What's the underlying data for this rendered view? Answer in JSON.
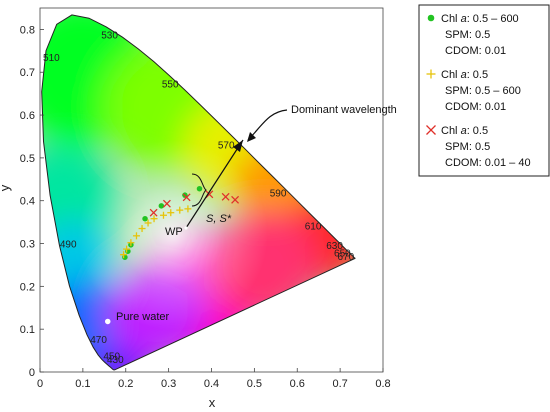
{
  "chart_data": {
    "type": "scatter",
    "xlabel": "x",
    "ylabel": "y",
    "xlim": [
      0,
      0.8
    ],
    "ylim": [
      0,
      0.85
    ],
    "x_ticks": [
      0,
      0.1,
      0.2,
      0.3,
      0.4,
      0.5,
      0.6,
      0.7,
      0.8
    ],
    "x_tick_labels": [
      "0",
      "0.1",
      "0.2",
      "0.3",
      "0.4",
      "0.5",
      "0.6",
      "0.7",
      "0.8"
    ],
    "y_ticks": [
      0,
      0.1,
      0.2,
      0.3,
      0.4,
      0.5,
      0.6,
      0.7,
      0.8
    ],
    "y_tick_labels": [
      "0",
      "0.1",
      "0.2",
      "0.3",
      "0.4",
      "0.5",
      "0.6",
      "0.7",
      "0.8"
    ],
    "grid": false,
    "legend_position": "outside-right",
    "locus_labels": [
      {
        "label": "470",
        "x": 0.124,
        "y": 0.058
      },
      {
        "label": "450",
        "x": 0.157,
        "y": 0.018
      },
      {
        "label": "430",
        "x": 0.166,
        "y": 0.009
      },
      {
        "label": "490",
        "x": 0.045,
        "y": 0.295
      },
      {
        "label": "510",
        "x": 0.014,
        "y": 0.75
      },
      {
        "label": "530",
        "x": 0.155,
        "y": 0.805
      },
      {
        "label": "550",
        "x": 0.302,
        "y": 0.692
      },
      {
        "label": "570",
        "x": 0.444,
        "y": 0.547
      },
      {
        "label": "590",
        "x": 0.575,
        "y": 0.424
      },
      {
        "label": "610",
        "x": 0.658,
        "y": 0.341
      },
      {
        "label": "630",
        "x": 0.708,
        "y": 0.292
      },
      {
        "label": "650",
        "x": 0.726,
        "y": 0.274
      },
      {
        "label": "670",
        "x": 0.734,
        "y": 0.265
      }
    ],
    "annotations": {
      "dominant_wavelength": "Dominant wavelength",
      "pure_water": "Pure water",
      "wp": "WP",
      "s_label": "S, S*"
    },
    "series": [
      {
        "name": "Chl a: 0.5 – 600 / SPM: 0.5 / CDOM: 0.01",
        "marker": "dot",
        "color": "#22c322",
        "x": [
          0.198,
          0.205,
          0.212,
          0.245,
          0.283,
          0.338,
          0.372
        ],
        "y": [
          0.268,
          0.282,
          0.297,
          0.358,
          0.388,
          0.413,
          0.428
        ]
      },
      {
        "name": "Chl a: 0.5 / SPM: 0.5 – 600 / CDOM: 0.01",
        "marker": "plus",
        "color": "#e6c40c",
        "x": [
          0.195,
          0.202,
          0.212,
          0.225,
          0.238,
          0.252,
          0.266,
          0.288,
          0.305,
          0.326,
          0.345
        ],
        "y": [
          0.274,
          0.287,
          0.302,
          0.318,
          0.335,
          0.348,
          0.358,
          0.366,
          0.372,
          0.378,
          0.381
        ]
      },
      {
        "name": "Chl a: 0.5 / SPM: 0.5 / CDOM: 0.01 – 40",
        "marker": "x",
        "color": "#e0302a",
        "x": [
          0.265,
          0.296,
          0.342,
          0.395,
          0.433,
          0.455
        ],
        "y": [
          0.372,
          0.393,
          0.408,
          0.415,
          0.409,
          0.402
        ]
      },
      {
        "name": "Pure water",
        "marker": "dot",
        "color": "#ffffff",
        "x": [
          0.158
        ],
        "y": [
          0.118
        ]
      }
    ],
    "legend": [
      {
        "symbol": "dot",
        "color": "#22c322",
        "line1_prefix": "Chl ",
        "line1_var": "a",
        "line1_suffix": ": 0.5 – 600",
        "line2": "SPM: 0.5",
        "line3": "CDOM: 0.01"
      },
      {
        "symbol": "plus",
        "color": "#e6c40c",
        "line1_prefix": "Chl ",
        "line1_var": "a",
        "line1_suffix": ": 0.5",
        "line2": "SPM: 0.5 – 600",
        "line3": "CDOM: 0.01"
      },
      {
        "symbol": "x",
        "color": "#e0302a",
        "line1_prefix": "Chl ",
        "line1_var": "a",
        "line1_suffix": ": 0.5",
        "line2": "SPM: 0.5",
        "line3": "CDOM: 0.01 – 40"
      }
    ]
  }
}
